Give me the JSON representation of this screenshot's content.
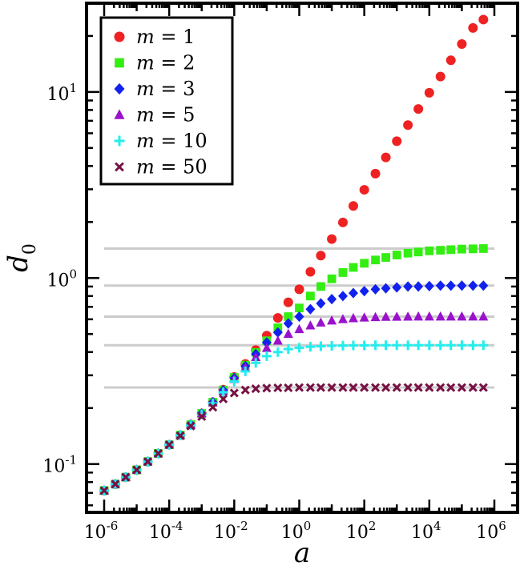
{
  "chart_data": {
    "type": "scatter",
    "xscale": "log",
    "yscale": "log",
    "xlabel": "a",
    "ylabel": "d",
    "ylabel_subscript": "0",
    "xlim": [
      1e-06,
      1000000.0
    ],
    "ylim": [
      0.055,
      30
    ],
    "xtick_labels": [
      {
        "base": "10",
        "exp": "-6"
      },
      {
        "base": "10",
        "exp": "-4"
      },
      {
        "base": "10",
        "exp": "-2"
      },
      {
        "base": "10",
        "exp": "0"
      },
      {
        "base": "10",
        "exp": "2"
      },
      {
        "base": "10",
        "exp": "4"
      },
      {
        "base": "10",
        "exp": "6"
      }
    ],
    "ytick_labels": [
      {
        "base": "10",
        "exp": "-1"
      },
      {
        "base": "10",
        "exp": "0"
      },
      {
        "base": "10",
        "exp": "1"
      }
    ],
    "asymptotes": [
      1.44,
      0.91,
      0.62,
      0.435,
      0.258
    ],
    "x": [
      1e-06,
      2.2e-06,
      4.6e-06,
      1e-05,
      2.2e-05,
      4.6e-05,
      0.0001,
      0.00022,
      0.00046,
      0.001,
      0.0022,
      0.0046,
      0.01,
      0.022,
      0.046,
      0.1,
      0.22,
      0.46,
      1,
      2.2,
      4.6,
      10,
      22,
      46,
      100,
      220,
      460,
      1000,
      2200,
      4600,
      10000,
      22000,
      46000,
      100000,
      220000,
      460000
    ],
    "series": [
      {
        "name": "m = 1",
        "label_var": "m",
        "label_value": "1",
        "marker": "circle",
        "color": "#ee2222",
        "values": [
          0.072,
          0.078,
          0.085,
          0.093,
          0.103,
          0.114,
          0.127,
          0.143,
          0.163,
          0.187,
          0.215,
          0.251,
          0.294,
          0.345,
          0.41,
          0.49,
          0.61,
          0.74,
          0.87,
          1.08,
          1.32,
          1.62,
          1.99,
          2.44,
          2.98,
          3.64,
          4.45,
          5.44,
          6.64,
          8.1,
          9.9,
          12.1,
          14.8,
          18.1,
          22.1,
          24.5
        ]
      },
      {
        "name": "m = 2",
        "label_var": "m",
        "label_value": "2",
        "marker": "square",
        "color": "#33ee11",
        "values": [
          0.072,
          0.078,
          0.085,
          0.093,
          0.103,
          0.114,
          0.127,
          0.143,
          0.163,
          0.187,
          0.215,
          0.25,
          0.292,
          0.34,
          0.398,
          0.46,
          0.54,
          0.62,
          0.69,
          0.8,
          0.9,
          0.99,
          1.07,
          1.14,
          1.2,
          1.25,
          1.29,
          1.33,
          1.36,
          1.38,
          1.4,
          1.41,
          1.42,
          1.43,
          1.435,
          1.44
        ]
      },
      {
        "name": "m = 3",
        "label_var": "m",
        "label_value": "3",
        "marker": "diamond",
        "color": "#1122ee",
        "values": [
          0.072,
          0.078,
          0.085,
          0.093,
          0.103,
          0.114,
          0.127,
          0.143,
          0.163,
          0.187,
          0.215,
          0.249,
          0.29,
          0.336,
          0.39,
          0.45,
          0.51,
          0.57,
          0.62,
          0.68,
          0.73,
          0.77,
          0.8,
          0.83,
          0.85,
          0.87,
          0.88,
          0.89,
          0.9,
          0.9,
          0.905,
          0.91,
          0.91,
          0.91,
          0.91,
          0.91
        ]
      },
      {
        "name": "m = 5",
        "label_var": "m",
        "label_value": "5",
        "marker": "triangle",
        "color": "#9911cc",
        "values": [
          0.072,
          0.078,
          0.085,
          0.093,
          0.103,
          0.114,
          0.127,
          0.143,
          0.163,
          0.187,
          0.214,
          0.247,
          0.286,
          0.33,
          0.375,
          0.42,
          0.46,
          0.5,
          0.53,
          0.555,
          0.575,
          0.59,
          0.6,
          0.607,
          0.612,
          0.615,
          0.617,
          0.618,
          0.619,
          0.62,
          0.62,
          0.62,
          0.62,
          0.62,
          0.62,
          0.62
        ]
      },
      {
        "name": "m = 10",
        "label_var": "m",
        "label_value": "10",
        "marker": "plus",
        "color": "#22eeee",
        "values": [
          0.072,
          0.078,
          0.085,
          0.093,
          0.103,
          0.114,
          0.127,
          0.143,
          0.162,
          0.185,
          0.212,
          0.243,
          0.278,
          0.315,
          0.35,
          0.38,
          0.4,
          0.415,
          0.422,
          0.427,
          0.43,
          0.432,
          0.433,
          0.434,
          0.434,
          0.435,
          0.435,
          0.435,
          0.435,
          0.435,
          0.435,
          0.435,
          0.435,
          0.435,
          0.435,
          0.435
        ]
      },
      {
        "name": "m = 50",
        "label_var": "m",
        "label_value": "50",
        "marker": "cross",
        "color": "#771144",
        "values": [
          0.072,
          0.078,
          0.085,
          0.093,
          0.103,
          0.114,
          0.127,
          0.142,
          0.16,
          0.18,
          0.202,
          0.224,
          0.241,
          0.25,
          0.254,
          0.256,
          0.257,
          0.257,
          0.258,
          0.258,
          0.258,
          0.258,
          0.258,
          0.258,
          0.258,
          0.258,
          0.258,
          0.258,
          0.258,
          0.258,
          0.258,
          0.258,
          0.258,
          0.258,
          0.258,
          0.258
        ]
      }
    ]
  }
}
